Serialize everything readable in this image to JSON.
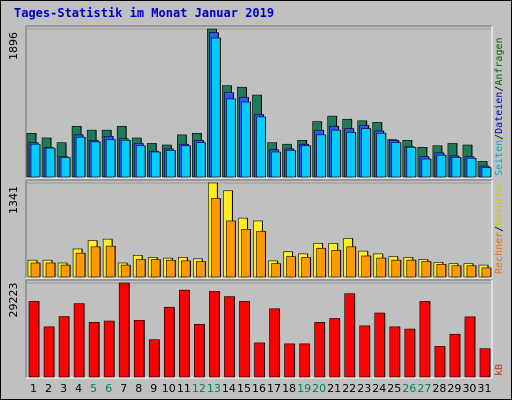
{
  "title": "Tages-Statistik im Monat Januar 2019",
  "chart_data": [
    {
      "type": "bar",
      "panel": "top",
      "ymax_label": "1896",
      "ylim": [
        0,
        1896
      ],
      "right_legend": [
        {
          "text": "Anfragen",
          "color": "#006600"
        },
        {
          "text": "Dateien",
          "color": "#0000cc"
        },
        {
          "text": "Seiten",
          "color": "#00aacc"
        }
      ],
      "legend_separator": "/",
      "series": [
        {
          "name": "Anfragen",
          "color": "#1e7a5a",
          "values": [
            560,
            500,
            440,
            650,
            600,
            600,
            650,
            500,
            430,
            410,
            540,
            560,
            1896,
            1170,
            1150,
            1050,
            440,
            420,
            470,
            710,
            780,
            740,
            720,
            700,
            480,
            470,
            380,
            400,
            430,
            410,
            200
          ]
        },
        {
          "name": "Dateien",
          "color": "#3355ff",
          "values": [
            440,
            380,
            260,
            540,
            470,
            520,
            490,
            430,
            330,
            360,
            420,
            470,
            1850,
            1080,
            1020,
            800,
            350,
            360,
            420,
            600,
            650,
            620,
            660,
            590,
            470,
            390,
            260,
            310,
            270,
            260,
            140
          ]
        },
        {
          "name": "Seiten",
          "color": "#00ccff",
          "values": [
            420,
            370,
            250,
            510,
            450,
            480,
            470,
            400,
            320,
            340,
            400,
            440,
            1780,
            1000,
            960,
            770,
            320,
            340,
            400,
            540,
            600,
            570,
            620,
            560,
            440,
            380,
            230,
            280,
            250,
            240,
            120
          ]
        }
      ],
      "categories": [
        "1",
        "2",
        "3",
        "4",
        "5",
        "6",
        "7",
        "8",
        "9",
        "10",
        "11",
        "12",
        "13",
        "14",
        "15",
        "16",
        "17",
        "18",
        "19",
        "20",
        "21",
        "22",
        "23",
        "24",
        "25",
        "26",
        "27",
        "28",
        "29",
        "30",
        "31"
      ]
    },
    {
      "type": "bar",
      "panel": "middle",
      "ymax_label": "1341",
      "ylim": [
        0,
        1341
      ],
      "right_legend": [
        {
          "text": "Besuche",
          "color": "#cccc00"
        }
      ],
      "series": [
        {
          "name": "Besuche",
          "color": "#ffee22",
          "values": [
            240,
            240,
            200,
            400,
            520,
            540,
            200,
            310,
            280,
            270,
            280,
            260,
            1341,
            1230,
            840,
            800,
            230,
            360,
            330,
            480,
            480,
            550,
            370,
            330,
            290,
            280,
            250,
            210,
            190,
            190,
            170
          ]
        },
        {
          "name": "Rechner",
          "color": "#ff9900",
          "values": [
            200,
            200,
            170,
            340,
            430,
            440,
            170,
            250,
            250,
            240,
            230,
            220,
            1120,
            800,
            680,
            650,
            190,
            290,
            280,
            410,
            380,
            430,
            300,
            270,
            240,
            240,
            220,
            180,
            160,
            160,
            130
          ]
        }
      ],
      "categories": [
        "1",
        "2",
        "3",
        "4",
        "5",
        "6",
        "7",
        "8",
        "9",
        "10",
        "11",
        "12",
        "13",
        "14",
        "15",
        "16",
        "17",
        "18",
        "19",
        "20",
        "21",
        "22",
        "23",
        "24",
        "25",
        "26",
        "27",
        "28",
        "29",
        "30",
        "31"
      ]
    },
    {
      "type": "bar",
      "panel": "bottom",
      "ymax_label": "29223",
      "ylim": [
        0,
        29223
      ],
      "right_legend": [
        {
          "text": "kB",
          "color": "#cc3300"
        }
      ],
      "series": [
        {
          "name": "kB",
          "color": "#ff0000",
          "values": [
            23500,
            15600,
            18800,
            22800,
            17000,
            17400,
            29223,
            17600,
            11600,
            21700,
            27000,
            16400,
            26600,
            25000,
            23500,
            10600,
            21200,
            10300,
            10300,
            17000,
            18200,
            25900,
            15900,
            19900,
            15600,
            14900,
            23500,
            9500,
            13300,
            18700,
            8800
          ]
        }
      ],
      "categories": [
        "1",
        "2",
        "3",
        "4",
        "5",
        "6",
        "7",
        "8",
        "9",
        "10",
        "11",
        "12",
        "13",
        "14",
        "15",
        "16",
        "17",
        "18",
        "19",
        "20",
        "21",
        "22",
        "23",
        "24",
        "25",
        "26",
        "27",
        "28",
        "29",
        "30",
        "31"
      ]
    }
  ],
  "right_legend_extra": [
    {
      "text": "Rechner",
      "color": "#ff6600"
    }
  ],
  "weekend_days": [
    "5",
    "6",
    "12",
    "13",
    "19",
    "20",
    "26",
    "27"
  ],
  "colors": {
    "background": "#c0c0c0",
    "panel": "#c0c0c0",
    "weekday_tick": "#000000",
    "weekend_tick": "#008060",
    "title": "#0000cc"
  }
}
